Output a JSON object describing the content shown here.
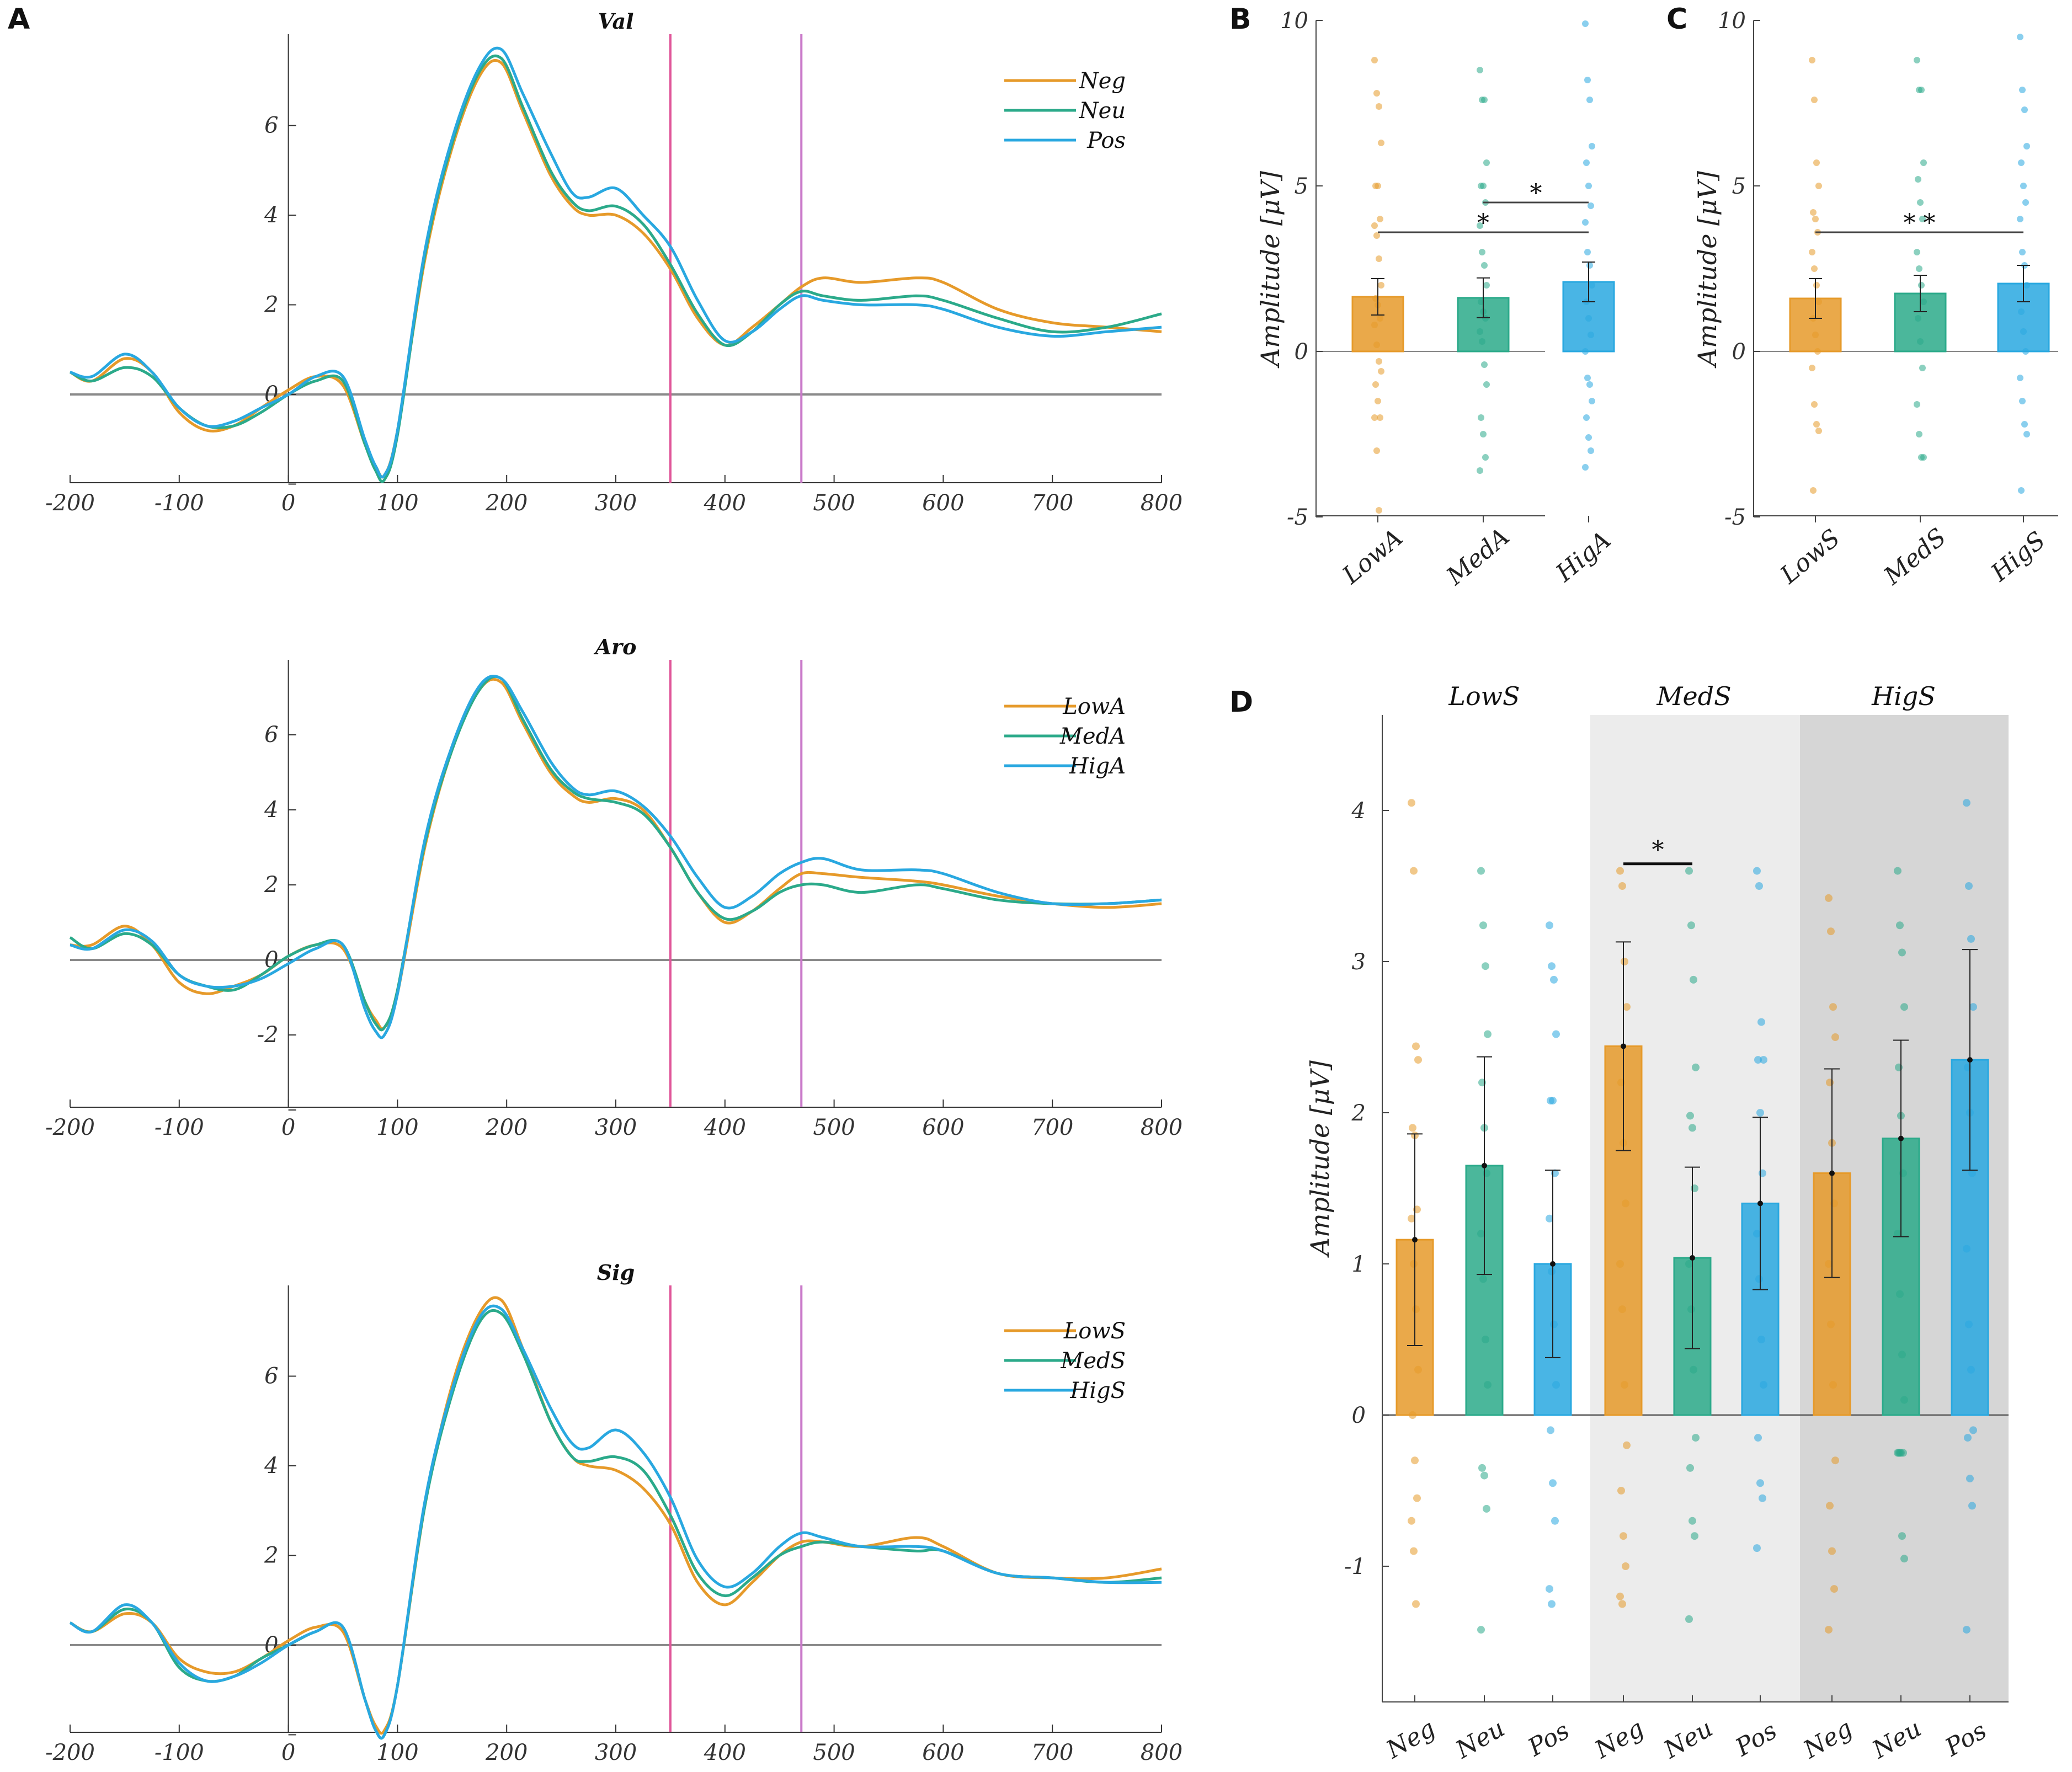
{
  "panel_labels": {
    "A": "A",
    "B": "B",
    "C": "C",
    "D": "D"
  },
  "colors": {
    "Neg": "#E69A2A",
    "Neu": "#2BAA8A",
    "Pos": "#29A8E0",
    "marker1": "#E0569A",
    "marker2": "#C979C9",
    "zero_line": "#8a8a8a",
    "shade1": "#ececec",
    "shade2": "#d6d6d6"
  },
  "units": {
    "amplitude": "Amplitude [μV]"
  },
  "chart_data": [
    {
      "id": "A-val",
      "type": "line",
      "title": "Val",
      "xlim": [
        -200,
        800
      ],
      "ylim": [
        -2,
        8
      ],
      "xticks": [
        -200,
        -100,
        0,
        100,
        200,
        300,
        400,
        500,
        600,
        700,
        800
      ],
      "yticks": [
        -2,
        0,
        2,
        4,
        6
      ],
      "yticklabels": [
        "",
        "0",
        "2",
        "4",
        "6"
      ],
      "vlines": [
        350,
        470
      ],
      "legend": [
        "Neg",
        "Neu",
        "Pos"
      ],
      "legend_position": "top-right",
      "x": [
        -200,
        -180,
        -150,
        -125,
        -100,
        -75,
        -50,
        -25,
        0,
        25,
        50,
        70,
        80,
        88,
        100,
        125,
        150,
        175,
        195,
        215,
        240,
        260,
        275,
        300,
        325,
        350,
        375,
        400,
        425,
        450,
        470,
        490,
        525,
        575,
        600,
        650,
        700,
        750,
        800
      ],
      "series": [
        {
          "name": "Neg",
          "color": "#E69A2A",
          "values": [
            0.5,
            0.3,
            0.8,
            0.5,
            -0.4,
            -0.8,
            -0.7,
            -0.3,
            0.1,
            0.4,
            0.2,
            -1.1,
            -1.6,
            -1.8,
            -0.8,
            3.0,
            5.5,
            7.1,
            7.4,
            6.3,
            4.9,
            4.2,
            4.0,
            4.0,
            3.6,
            2.8,
            1.7,
            1.1,
            1.5,
            2.0,
            2.4,
            2.6,
            2.5,
            2.6,
            2.5,
            1.9,
            1.6,
            1.5,
            1.4
          ]
        },
        {
          "name": "Neu",
          "color": "#2BAA8A",
          "values": [
            0.5,
            0.3,
            0.6,
            0.4,
            -0.3,
            -0.7,
            -0.7,
            -0.4,
            0.0,
            0.3,
            0.3,
            -1.1,
            -1.7,
            -1.9,
            -0.9,
            3.1,
            5.6,
            7.2,
            7.5,
            6.4,
            5.0,
            4.3,
            4.1,
            4.2,
            3.8,
            2.9,
            1.8,
            1.1,
            1.4,
            2.0,
            2.3,
            2.2,
            2.1,
            2.2,
            2.1,
            1.7,
            1.4,
            1.5,
            1.8
          ]
        },
        {
          "name": "Pos",
          "color": "#29A8E0",
          "values": [
            0.5,
            0.4,
            0.9,
            0.5,
            -0.3,
            -0.7,
            -0.6,
            -0.3,
            0.0,
            0.4,
            0.4,
            -1.0,
            -1.6,
            -1.8,
            -0.8,
            3.2,
            5.7,
            7.3,
            7.7,
            6.7,
            5.4,
            4.5,
            4.4,
            4.6,
            4.0,
            3.3,
            2.1,
            1.2,
            1.4,
            1.9,
            2.2,
            2.1,
            2.0,
            2.0,
            1.9,
            1.5,
            1.3,
            1.4,
            1.5
          ]
        }
      ]
    },
    {
      "id": "A-aro",
      "type": "line",
      "title": "Aro",
      "xlim": [
        -200,
        800
      ],
      "ylim": [
        -4,
        8
      ],
      "xticks": [
        -200,
        -100,
        0,
        100,
        200,
        300,
        400,
        500,
        600,
        700,
        800
      ],
      "yticks": [
        -4,
        -2,
        0,
        2,
        4,
        6
      ],
      "yticklabels": [
        "",
        "-2",
        "0",
        "2",
        "4",
        "6"
      ],
      "vlines": [
        350,
        470
      ],
      "legend": [
        "LowA",
        "MedA",
        "HigA"
      ],
      "legend_position": "top-right",
      "x": [
        -200,
        -180,
        -150,
        -125,
        -100,
        -75,
        -50,
        -25,
        0,
        25,
        50,
        70,
        80,
        88,
        100,
        125,
        150,
        175,
        195,
        215,
        240,
        260,
        275,
        300,
        325,
        350,
        375,
        400,
        425,
        450,
        470,
        490,
        525,
        575,
        600,
        650,
        700,
        750,
        800
      ],
      "series": [
        {
          "name": "LowA",
          "color": "#E69A2A",
          "values": [
            0.4,
            0.4,
            0.9,
            0.4,
            -0.6,
            -0.9,
            -0.7,
            -0.4,
            0.1,
            0.4,
            0.3,
            -1.1,
            -1.6,
            -1.8,
            -0.9,
            3.0,
            5.6,
            7.2,
            7.4,
            6.3,
            5.0,
            4.4,
            4.2,
            4.3,
            4.0,
            3.0,
            1.8,
            1.0,
            1.3,
            1.9,
            2.3,
            2.3,
            2.2,
            2.1,
            2.0,
            1.7,
            1.5,
            1.4,
            1.5
          ]
        },
        {
          "name": "MedA",
          "color": "#2BAA8A",
          "values": [
            0.6,
            0.3,
            0.7,
            0.4,
            -0.4,
            -0.7,
            -0.8,
            -0.4,
            0.1,
            0.4,
            0.4,
            -1.1,
            -1.7,
            -1.8,
            -0.8,
            3.1,
            5.6,
            7.2,
            7.5,
            6.4,
            5.1,
            4.5,
            4.3,
            4.2,
            3.9,
            3.0,
            1.8,
            1.1,
            1.3,
            1.8,
            2.0,
            2.0,
            1.8,
            2.0,
            1.9,
            1.6,
            1.5,
            1.5,
            1.6
          ]
        },
        {
          "name": "HigA",
          "color": "#29A8E0",
          "values": [
            0.4,
            0.3,
            0.8,
            0.5,
            -0.4,
            -0.7,
            -0.7,
            -0.5,
            -0.1,
            0.3,
            0.4,
            -1.3,
            -1.9,
            -2.0,
            -0.9,
            3.2,
            5.7,
            7.3,
            7.5,
            6.6,
            5.3,
            4.6,
            4.4,
            4.5,
            4.1,
            3.3,
            2.2,
            1.4,
            1.7,
            2.3,
            2.6,
            2.7,
            2.4,
            2.4,
            2.3,
            1.8,
            1.5,
            1.5,
            1.6
          ]
        }
      ]
    },
    {
      "id": "A-sig",
      "type": "line",
      "title": "Sig",
      "xlim": [
        -200,
        800
      ],
      "ylim": [
        -2,
        8
      ],
      "xticks": [
        -200,
        -100,
        0,
        100,
        200,
        300,
        400,
        500,
        600,
        700,
        800
      ],
      "yticks": [
        -2,
        0,
        2,
        4,
        6
      ],
      "yticklabels": [
        "",
        "0",
        "2",
        "4",
        "6"
      ],
      "vlines": [
        350,
        470
      ],
      "legend": [
        "LowS",
        "MedS",
        "HigS"
      ],
      "legend_position": "top-right",
      "x": [
        -200,
        -180,
        -150,
        -125,
        -100,
        -75,
        -50,
        -25,
        0,
        25,
        50,
        70,
        80,
        88,
        100,
        125,
        150,
        175,
        195,
        215,
        240,
        260,
        275,
        300,
        325,
        350,
        375,
        400,
        425,
        450,
        470,
        490,
        525,
        575,
        600,
        650,
        700,
        750,
        800
      ],
      "series": [
        {
          "name": "LowS",
          "color": "#E69A2A",
          "values": [
            0.5,
            0.3,
            0.7,
            0.5,
            -0.3,
            -0.6,
            -0.6,
            -0.3,
            0.1,
            0.4,
            0.3,
            -1.2,
            -1.8,
            -1.9,
            -0.9,
            3.1,
            5.8,
            7.4,
            7.7,
            6.6,
            5.0,
            4.2,
            4.0,
            3.9,
            3.5,
            2.7,
            1.4,
            0.9,
            1.4,
            2.0,
            2.3,
            2.3,
            2.2,
            2.4,
            2.2,
            1.6,
            1.5,
            1.5,
            1.7
          ]
        },
        {
          "name": "MedS",
          "color": "#2BAA8A",
          "values": [
            0.5,
            0.3,
            0.8,
            0.5,
            -0.5,
            -0.8,
            -0.7,
            -0.3,
            0.0,
            0.3,
            0.4,
            -1.2,
            -1.9,
            -2.0,
            -0.9,
            3.1,
            5.6,
            7.2,
            7.4,
            6.5,
            5.0,
            4.2,
            4.1,
            4.2,
            3.9,
            2.9,
            1.6,
            1.1,
            1.5,
            2.0,
            2.2,
            2.3,
            2.2,
            2.1,
            2.1,
            1.6,
            1.5,
            1.4,
            1.5
          ]
        },
        {
          "name": "HigS",
          "color": "#29A8E0",
          "values": [
            0.5,
            0.3,
            0.9,
            0.5,
            -0.4,
            -0.8,
            -0.7,
            -0.4,
            0.0,
            0.3,
            0.4,
            -1.2,
            -1.9,
            -2.0,
            -0.9,
            3.2,
            5.7,
            7.3,
            7.5,
            6.6,
            5.3,
            4.5,
            4.4,
            4.8,
            4.3,
            3.3,
            1.9,
            1.3,
            1.6,
            2.2,
            2.5,
            2.4,
            2.2,
            2.2,
            2.1,
            1.6,
            1.5,
            1.4,
            1.4
          ]
        }
      ]
    },
    {
      "id": "B",
      "type": "bar",
      "categories": [
        "LowA",
        "MedA",
        "HigA"
      ],
      "values": [
        1.65,
        1.62,
        2.1
      ],
      "errors": [
        0.55,
        0.6,
        0.6
      ],
      "ylim": [
        -5,
        10
      ],
      "yticks": [
        -5,
        0,
        5,
        10
      ],
      "ylabel": "Amplitude [μV]",
      "colors": [
        "#E69A2A",
        "#2BAA8A",
        "#29A8E0"
      ],
      "significance": [
        {
          "from": 0,
          "to": 2,
          "y": 3.6,
          "label": "*"
        },
        {
          "from": 1,
          "to": 2,
          "y": 4.5,
          "label": "*"
        }
      ],
      "points": [
        [
          8.8,
          7.8,
          7.4,
          6.3,
          5.0,
          5.0,
          4.0,
          3.8,
          3.5,
          2.8,
          2.0,
          1.6,
          1.4,
          1.0,
          0.8,
          0.2,
          -0.3,
          -0.6,
          -1.0,
          -1.5,
          -2.0,
          -2.0,
          -3.0,
          -4.8
        ],
        [
          8.5,
          7.6,
          7.6,
          5.7,
          5.0,
          5.0,
          4.5,
          3.8,
          3.0,
          2.6,
          2.0,
          1.5,
          1.2,
          1.0,
          0.6,
          0.3,
          -0.4,
          -1.0,
          -2.0,
          -2.5,
          -3.2,
          -3.6
        ],
        [
          9.9,
          8.2,
          7.6,
          6.2,
          5.7,
          5.0,
          4.4,
          3.9,
          3.0,
          2.6,
          2.0,
          1.5,
          1.0,
          0.5,
          0.0,
          -0.8,
          -1.0,
          -1.5,
          -2.0,
          -2.6,
          -3.0,
          -3.5
        ]
      ]
    },
    {
      "id": "C",
      "type": "bar",
      "categories": [
        "LowS",
        "MedS",
        "HigS"
      ],
      "values": [
        1.6,
        1.75,
        2.05
      ],
      "errors": [
        0.6,
        0.55,
        0.55
      ],
      "ylim": [
        -5,
        10
      ],
      "yticks": [
        -5,
        0,
        5,
        10
      ],
      "ylabel": "Amplitude [μV]",
      "colors": [
        "#E69A2A",
        "#2BAA8A",
        "#29A8E0"
      ],
      "significance": [
        {
          "from": 0,
          "to": 2,
          "y": 3.6,
          "label": "* *"
        }
      ],
      "points": [
        [
          8.8,
          7.6,
          5.7,
          5.0,
          4.2,
          4.0,
          3.6,
          3.0,
          2.5,
          2.0,
          1.5,
          1.0,
          0.5,
          0.0,
          -0.5,
          -1.6,
          -2.2,
          -2.4,
          -4.2
        ],
        [
          8.8,
          7.9,
          7.9,
          5.7,
          5.2,
          4.5,
          4.0,
          3.0,
          2.5,
          2.0,
          1.5,
          1.0,
          0.3,
          -0.5,
          -1.6,
          -2.5,
          -3.2,
          -3.2
        ],
        [
          9.5,
          7.9,
          7.3,
          6.2,
          5.7,
          5.0,
          4.5,
          4.0,
          3.0,
          2.6,
          2.0,
          1.2,
          0.6,
          0.0,
          -0.8,
          -1.5,
          -2.2,
          -2.5,
          -4.2
        ]
      ]
    },
    {
      "id": "D",
      "type": "bar",
      "groups": [
        "LowS",
        "MedS",
        "HigS"
      ],
      "categories": [
        "Neg",
        "Neu",
        "Pos",
        "Neg",
        "Neu",
        "Pos",
        "Neg",
        "Neu",
        "Pos"
      ],
      "values": [
        1.16,
        1.65,
        1.0,
        2.44,
        1.04,
        1.4,
        1.6,
        1.83,
        2.35
      ],
      "errors": [
        0.7,
        0.72,
        0.62,
        0.69,
        0.6,
        0.57,
        0.69,
        0.65,
        0.73
      ],
      "ylim": [
        -1.75,
        4.6
      ],
      "yticks": [
        -1,
        0,
        1,
        2,
        3,
        4
      ],
      "ylabel": "Amplitude [μV]",
      "colors": [
        "#E69A2A",
        "#2BAA8A",
        "#29A8E0",
        "#E69A2A",
        "#2BAA8A",
        "#29A8E0",
        "#E69A2A",
        "#2BAA8A",
        "#29A8E0"
      ],
      "significance": [
        {
          "from": 3,
          "to": 4,
          "y": 3.72,
          "label": "*"
        }
      ],
      "points": [
        [
          4.05,
          3.6,
          2.44,
          2.35,
          1.9,
          1.85,
          1.36,
          1.3,
          1.0,
          0.7,
          0.3,
          0.0,
          -0.3,
          -0.55,
          -0.7,
          -0.9,
          -1.25
        ],
        [
          3.6,
          3.24,
          2.97,
          2.52,
          2.2,
          1.9,
          1.6,
          1.2,
          0.9,
          0.5,
          0.2,
          -0.35,
          -0.4,
          -0.62,
          -1.42
        ],
        [
          3.24,
          2.97,
          2.88,
          2.52,
          2.08,
          2.08,
          1.6,
          1.3,
          0.95,
          0.6,
          0.2,
          -0.1,
          -0.45,
          -0.7,
          -1.15,
          -1.25
        ],
        [
          3.6,
          3.5,
          3.0,
          2.7,
          2.2,
          1.8,
          1.4,
          1.0,
          0.7,
          0.2,
          -0.2,
          -0.5,
          -0.8,
          -1.0,
          -1.2,
          -1.25
        ],
        [
          3.6,
          3.24,
          2.88,
          2.3,
          1.98,
          1.9,
          1.5,
          1.0,
          0.7,
          0.3,
          -0.15,
          -0.35,
          -0.7,
          -0.8,
          -1.35
        ],
        [
          3.6,
          3.5,
          2.6,
          2.35,
          2.35,
          2.0,
          1.6,
          1.2,
          0.9,
          0.5,
          0.2,
          -0.15,
          -0.45,
          -0.55,
          -0.88
        ],
        [
          3.42,
          3.2,
          2.7,
          2.5,
          2.2,
          1.8,
          1.4,
          1.0,
          0.6,
          0.2,
          -0.3,
          -0.6,
          -0.9,
          -1.15,
          -1.42
        ],
        [
          3.6,
          3.24,
          3.06,
          2.7,
          2.3,
          1.98,
          1.6,
          1.2,
          0.8,
          0.4,
          0.1,
          -0.25,
          -0.25,
          -0.25,
          -0.25,
          -0.25,
          -0.8,
          -0.95
        ],
        [
          4.05,
          3.5,
          3.15,
          2.7,
          2.3,
          2.0,
          1.6,
          1.1,
          0.6,
          0.3,
          -0.1,
          -0.15,
          -0.42,
          -0.6,
          -1.42
        ]
      ]
    }
  ]
}
